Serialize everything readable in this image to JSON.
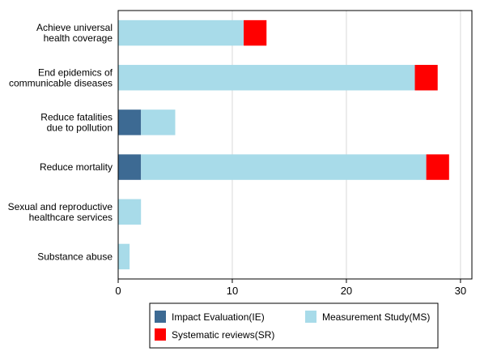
{
  "chart_data": {
    "type": "bar",
    "orientation": "horizontal",
    "stacked": true,
    "categories": [
      [
        "Achieve universal",
        "health coverage"
      ],
      [
        "End epidemics of",
        "communicable diseases"
      ],
      [
        "Reduce fatalities",
        "due to pollution"
      ],
      [
        "Reduce mortality"
      ],
      [
        "Sexual and reproductive",
        "healthcare services"
      ],
      [
        "Substance abuse"
      ]
    ],
    "series": [
      {
        "name": "Impact Evaluation(IE)",
        "color": "#3d6a93",
        "values": [
          0,
          0,
          2,
          2,
          0,
          0
        ]
      },
      {
        "name": "Measurement Study(MS)",
        "color": "#a8dbe9",
        "values": [
          11,
          26,
          3,
          25,
          2,
          1
        ]
      },
      {
        "name": "Systematic reviews(SR)",
        "color": "#ff0000",
        "values": [
          2,
          2,
          0,
          2,
          0,
          0
        ]
      }
    ],
    "xlim": [
      0,
      31
    ],
    "xticks": [
      "0",
      "10",
      "20",
      "30"
    ],
    "xtick_values": [
      0,
      10,
      20,
      30
    ],
    "grid": "vertical",
    "legend_position": "bottom"
  }
}
